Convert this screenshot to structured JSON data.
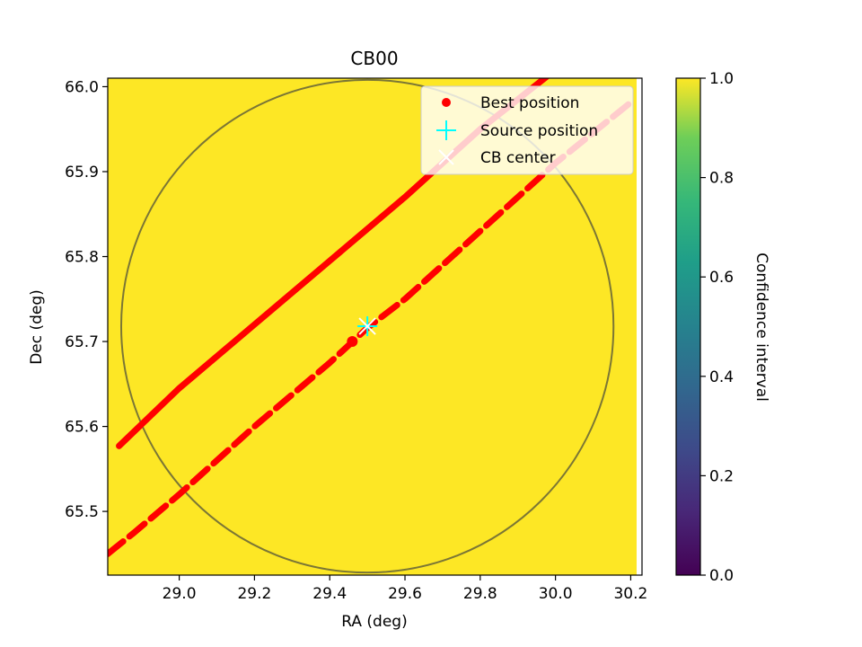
{
  "chart_data": {
    "type": "heatmap",
    "title": "CB00",
    "xlabel": "RA (deg)",
    "ylabel": "Dec (deg)",
    "xlim": [
      28.81,
      30.23
    ],
    "ylim": [
      65.425,
      66.01
    ],
    "xticks": [
      "29.0",
      "29.2",
      "29.4",
      "29.6",
      "29.8",
      "30.0",
      "30.2"
    ],
    "yticks": [
      "65.5",
      "65.6",
      "65.7",
      "65.8",
      "65.9",
      "66.0"
    ],
    "heatmap_value": 1.0,
    "colorbar": {
      "label": "Confidence interval",
      "range": [
        0.0,
        1.0
      ],
      "ticks": [
        "0.0",
        "0.2",
        "0.4",
        "0.6",
        "0.8",
        "1.0"
      ],
      "colormap": "viridis"
    },
    "circle": {
      "center": [
        29.5,
        65.718
      ],
      "radius_dec": 0.29,
      "color": "#5a5a3a"
    },
    "series": [
      {
        "name": "Best position",
        "color": "#ff0000",
        "marker": "circle",
        "tracks": [
          {
            "x": [
              28.84,
              29.0,
              29.2,
              29.4,
              29.6,
              29.8,
              30.0,
              30.2
            ],
            "y": [
              65.577,
              65.645,
              65.72,
              65.795,
              65.87,
              65.95,
              66.02,
              66.1
            ],
            "style": "solid"
          },
          {
            "x": [
              28.81,
              28.88,
              29.0,
              29.2,
              29.4,
              29.5,
              29.6,
              29.8,
              30.0,
              30.21
            ],
            "y": [
              65.45,
              65.475,
              65.52,
              65.6,
              65.675,
              65.716,
              65.75,
              65.83,
              65.91,
              65.985
            ],
            "style": "dashed"
          }
        ],
        "points": [
          {
            "x": 29.46,
            "y": 65.7
          }
        ]
      },
      {
        "name": "Source position",
        "color": "#00ffff",
        "marker": "plus",
        "points": [
          {
            "x": 29.5,
            "y": 65.718
          }
        ]
      },
      {
        "name": "CB center",
        "color": "#ffffff",
        "marker": "x",
        "points": [
          {
            "x": 29.5,
            "y": 65.718
          }
        ]
      }
    ],
    "legend": {
      "placement": "top-right",
      "entries": [
        "Best position",
        "Source position",
        "CB center"
      ]
    }
  },
  "colors": {
    "heatmap_fill": "#fde725",
    "frame": "#000000"
  }
}
